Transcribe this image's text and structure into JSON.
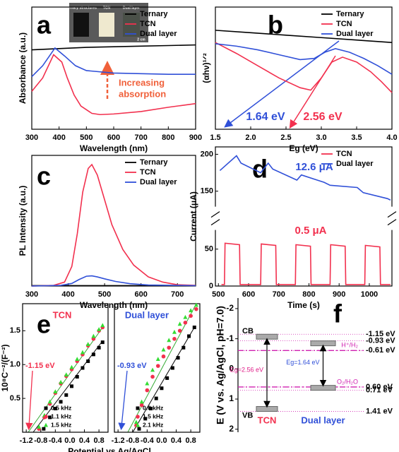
{
  "panel_labels": [
    "a",
    "b",
    "c",
    "d",
    "e",
    "f"
  ],
  "chart_data": [
    {
      "type": "line",
      "xlabel": "Wavelength (nm)",
      "ylabel": "Absorbance (a.u.)",
      "xlim": [
        300,
        900
      ],
      "xticks": [
        300,
        400,
        500,
        600,
        700,
        800,
        900
      ],
      "ylim": [
        0,
        1
      ],
      "legend": "upper right",
      "inset_labels": [
        "Ternary structures",
        "TCN",
        "Dual layer"
      ],
      "inset_scale": "2 cm",
      "annotations": [
        {
          "text": "Increasing",
          "color": "#f0603a"
        },
        {
          "text": "absorption",
          "color": "#f0603a"
        }
      ],
      "series": [
        {
          "name": "Ternary",
          "color": "#000000",
          "x": [
            300,
            400,
            500,
            600,
            700,
            800,
            900
          ],
          "values": [
            0.65,
            0.66,
            0.67,
            0.675,
            0.68,
            0.685,
            0.69
          ]
        },
        {
          "name": "TCN",
          "color": "#f2304e",
          "x": [
            300,
            340,
            380,
            410,
            430,
            455,
            480,
            520,
            550,
            600,
            700,
            800,
            900
          ],
          "values": [
            0.31,
            0.42,
            0.61,
            0.55,
            0.42,
            0.28,
            0.19,
            0.13,
            0.12,
            0.125,
            0.145,
            0.18,
            0.21
          ]
        },
        {
          "name": "Dual layer",
          "color": "#3050d8",
          "x": [
            300,
            340,
            385,
            420,
            460,
            500,
            600,
            700,
            800,
            900
          ],
          "values": [
            0.43,
            0.52,
            0.665,
            0.6,
            0.52,
            0.48,
            0.46,
            0.455,
            0.45,
            0.45
          ]
        }
      ]
    },
    {
      "type": "line",
      "xlabel": "Eg (eV)",
      "ylabel": "(αhν)¹ᐟ²",
      "xlim": [
        1.5,
        4.0
      ],
      "xticks": [
        1.5,
        {
          "value": 2,
          "label": "2.0"
        },
        2.5,
        {
          "value": 3,
          "label": "3.0"
        },
        3.5,
        {
          "value": 4,
          "label": "4.0"
        }
      ],
      "ylim": [
        0,
        1
      ],
      "legend": "upper right",
      "annotations": [
        {
          "text": "1.64 eV",
          "color": "#3050d8"
        },
        {
          "text": "2.56 eV",
          "color": "#f2304e"
        }
      ],
      "series": [
        {
          "name": "Ternary",
          "color": "#000000",
          "x": [
            1.5,
            2.0,
            2.5,
            3.0,
            3.5,
            4.0
          ],
          "values": [
            0.81,
            0.79,
            0.77,
            0.75,
            0.73,
            0.71
          ]
        },
        {
          "name": "TCN",
          "color": "#f2304e",
          "x": [
            1.5,
            1.8,
            2.1,
            2.4,
            2.7,
            2.85,
            3.0,
            3.15,
            3.3,
            3.5,
            3.7,
            3.85,
            4.0
          ],
          "values": [
            0.71,
            0.62,
            0.52,
            0.42,
            0.34,
            0.32,
            0.42,
            0.55,
            0.59,
            0.55,
            0.47,
            0.39,
            0.3
          ]
        },
        {
          "name": "Dual layer",
          "color": "#3050d8",
          "x": [
            1.5,
            1.8,
            2.1,
            2.4,
            2.7,
            2.9,
            3.05,
            3.2,
            3.4,
            3.6,
            3.8,
            4.0
          ],
          "values": [
            0.7,
            0.68,
            0.65,
            0.61,
            0.57,
            0.58,
            0.63,
            0.66,
            0.63,
            0.58,
            0.52,
            0.45
          ]
        }
      ]
    },
    {
      "type": "line",
      "xlabel": "Wavelength (nm)",
      "ylabel": "PL Intensity (a.u.)",
      "xlim": [
        300,
        750
      ],
      "xticks": [
        300,
        400,
        500,
        600,
        700
      ],
      "ylim": [
        0,
        1
      ],
      "legend": "upper right",
      "series": [
        {
          "name": "Ternary",
          "color": "#000000",
          "x": [
            300,
            750
          ],
          "values": [
            0.003,
            0.003
          ]
        },
        {
          "name": "TCN",
          "color": "#f2304e",
          "x": [
            300,
            360,
            390,
            410,
            425,
            440,
            455,
            465,
            480,
            500,
            520,
            550,
            580,
            620,
            660,
            700,
            750
          ],
          "values": [
            0,
            0.005,
            0.03,
            0.15,
            0.4,
            0.72,
            0.9,
            0.93,
            0.85,
            0.66,
            0.47,
            0.28,
            0.16,
            0.07,
            0.03,
            0.01,
            0.005
          ]
        },
        {
          "name": "Dual layer",
          "color": "#3050d8",
          "x": [
            300,
            380,
            410,
            430,
            450,
            465,
            480,
            500,
            530,
            570,
            620,
            750
          ],
          "values": [
            0,
            0.005,
            0.02,
            0.05,
            0.075,
            0.078,
            0.07,
            0.055,
            0.035,
            0.018,
            0.008,
            0.003
          ]
        }
      ]
    },
    {
      "type": "line",
      "xlabel": "Time (s)",
      "ylabel": "Current (μA)",
      "xlim": [
        490,
        1075
      ],
      "xticks": [
        500,
        600,
        700,
        800,
        900,
        1000
      ],
      "ylim": [
        0,
        210
      ],
      "ybreak": [
        75,
        130
      ],
      "yticks": [
        0,
        50,
        150,
        200
      ],
      "legend": "upper right",
      "annotations": [
        {
          "text": "12.6 μA",
          "color": "#3050d8"
        },
        {
          "text": "0.5 μA",
          "color": "#f2304e"
        }
      ],
      "series": [
        {
          "name": "TCN",
          "color": "#f2304e",
          "x": [
            510,
            520,
            522,
            570,
            572,
            640,
            642,
            690,
            692,
            755,
            757,
            805,
            807,
            870,
            872,
            920,
            922,
            985,
            987,
            1035,
            1037,
            1070
          ],
          "values": [
            2,
            2,
            58,
            56,
            2,
            2,
            57,
            55,
            2,
            2,
            56,
            54,
            2,
            2,
            56,
            54,
            2,
            2,
            55,
            53,
            2,
            2
          ]
        },
        {
          "name": "Dual layer",
          "color": "#3050d8",
          "x": [
            505,
            560,
            575,
            640,
            665,
            680,
            760,
            775,
            850,
            870,
            960,
            980,
            1060,
            1070
          ],
          "values": [
            178,
            198,
            188,
            175,
            188,
            180,
            165,
            172,
            162,
            158,
            155,
            148,
            140,
            138
          ]
        }
      ]
    },
    {
      "type": "scatter",
      "xlabel": "Potential vs Ag/AgCl",
      "ylabel": "10⁸C⁻²/(F⁻²)",
      "xlim": [
        -1.3,
        1.05
      ],
      "xticks": [
        -1.2,
        -0.8,
        -0.4,
        {
          "value": 0,
          "label": "0.0"
        },
        0.4,
        0.8
      ],
      "ylim": [
        0,
        1.9
      ],
      "yticks": [
        0.5,
        {
          "value": 1,
          "label": "1.0"
        },
        1.5
      ],
      "legend": "lower right",
      "annotations": [
        {
          "text": "TCN",
          "color": "#f2304e"
        },
        {
          "text": "-1.15 eV",
          "color": "#f2304e"
        }
      ],
      "series": [
        {
          "name": "0.5 kHz",
          "color": "#000000",
          "marker": "square",
          "x": [
            -0.72,
            -0.55,
            -0.4,
            -0.25,
            -0.1,
            0.05,
            0.2,
            0.35,
            0.5,
            0.65,
            0.8,
            0.9
          ],
          "values": [
            0.05,
            0.22,
            0.35,
            0.45,
            0.55,
            0.68,
            0.82,
            0.95,
            1.05,
            1.15,
            1.25,
            1.33
          ]
        },
        {
          "name": "1.1 kHz",
          "color": "#f2304e",
          "marker": "circle",
          "x": [
            -0.85,
            -0.7,
            -0.55,
            -0.4,
            -0.25,
            -0.1,
            0.05,
            0.2,
            0.35,
            0.5,
            0.65,
            0.8,
            0.9
          ],
          "values": [
            0.05,
            0.22,
            0.42,
            0.58,
            0.72,
            0.83,
            0.93,
            1.05,
            1.15,
            1.28,
            1.38,
            1.5,
            1.55
          ]
        },
        {
          "name": "1.5 kHz",
          "color": "#33dd33",
          "marker": "triangle",
          "x": [
            -0.85,
            -0.7,
            -0.55,
            -0.4,
            -0.25,
            -0.1,
            0.05,
            0.2,
            0.35,
            0.5,
            0.65,
            0.8,
            0.9
          ],
          "values": [
            0.08,
            0.25,
            0.45,
            0.6,
            0.74,
            0.85,
            0.96,
            1.08,
            1.18,
            1.3,
            1.42,
            1.52,
            1.58
          ]
        }
      ]
    },
    {
      "type": "scatter",
      "xlim": [
        -1.3,
        1.05
      ],
      "xticks": [
        -1.2,
        -0.8,
        -0.4,
        {
          "value": 0,
          "label": "0.0"
        },
        0.4,
        0.8
      ],
      "ylim": [
        0,
        1.9
      ],
      "legend": "lower right",
      "annotations": [
        {
          "text": "Dual layer",
          "color": "#3050d8"
        },
        {
          "text": "-0.93 eV",
          "color": "#3050d8"
        }
      ],
      "series": [
        {
          "name": "0.6 kHz",
          "color": "#000000",
          "marker": "square",
          "x": [
            -0.62,
            -0.45,
            -0.3,
            -0.15,
            0,
            0.15,
            0.3,
            0.45,
            0.6,
            0.75,
            0.9
          ],
          "values": [
            0.05,
            0.2,
            0.35,
            0.5,
            0.65,
            0.8,
            0.95,
            1.1,
            1.25,
            1.42,
            1.55
          ]
        },
        {
          "name": "1.5 kHz",
          "color": "#f2304e",
          "marker": "circle",
          "x": [
            -0.7,
            -0.55,
            -0.4,
            -0.25,
            -0.1,
            0.05,
            0.2,
            0.35,
            0.5,
            0.65,
            0.8,
            0.95
          ],
          "values": [
            0.1,
            0.4,
            0.62,
            0.82,
            0.98,
            1.12,
            1.25,
            1.38,
            1.5,
            1.62,
            1.72,
            1.82
          ]
        },
        {
          "name": "2.1 kHz",
          "color": "#33dd33",
          "marker": "triangle",
          "x": [
            -0.7,
            -0.55,
            -0.4,
            -0.25,
            -0.1,
            0.05,
            0.2,
            0.35,
            0.5,
            0.65,
            0.8,
            0.95
          ],
          "values": [
            0.15,
            0.45,
            0.72,
            0.92,
            1.08,
            1.22,
            1.36,
            1.48,
            1.6,
            1.7,
            1.8,
            1.88
          ]
        }
      ]
    },
    {
      "type": "band",
      "ylabel": "E (V vs. Ag/AgCl, pH=7.0)",
      "ylim": [
        -2.35,
        2.1
      ],
      "yticks": [
        -2,
        -1,
        0,
        1,
        2
      ],
      "cb_label": "CB",
      "vb_label": "VB",
      "levels": [
        -1.15,
        -0.93,
        -0.61,
        0.6,
        0.71,
        1.41
      ],
      "value_labels": [
        "-1.15 eV",
        "-0.93 eV",
        "-0.61 eV",
        "0.60 eV",
        "0.71 eV",
        "1.41 eV"
      ],
      "redox": [
        {
          "name": "H⁺/H₂",
          "value": -0.61
        },
        {
          "name": "O₂/H₂O",
          "value": 0.6
        }
      ],
      "bands": [
        {
          "name": "TCN",
          "color": "#f2304e",
          "cb": -1.15,
          "vb": 1.41,
          "eg_label": "Eg=2.56 eV",
          "eg_color": "#e0208a"
        },
        {
          "name": "Dual layer",
          "color": "#3050d8",
          "cb": -0.93,
          "vb": 0.71,
          "eg_label": "Eg=1.64 eV",
          "eg_color": "#3050d8"
        }
      ]
    }
  ]
}
